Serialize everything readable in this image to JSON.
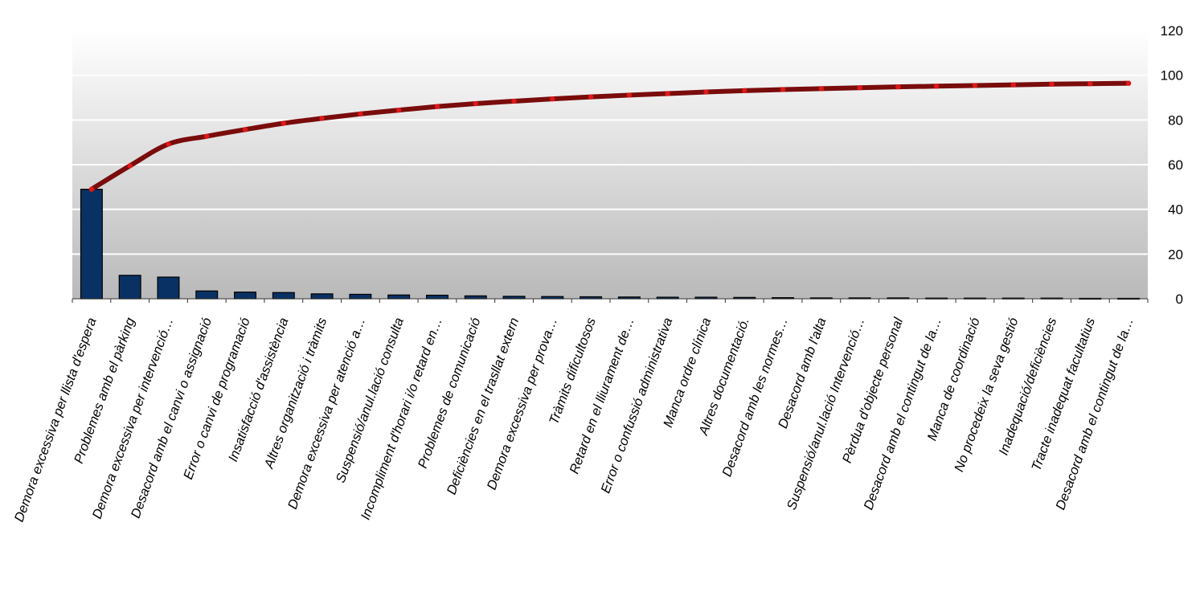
{
  "chart_data": {
    "type": "bar",
    "combo_line": true,
    "categories": [
      "Demora excessiva per llista d'espera",
      "Problemes amb el pàrking",
      "Demora excessiva per intervenció…",
      "Desacord amb el canvi o assignació",
      "Error o canvi de programació",
      "Insatisfacció d'assistència",
      "Altres organització i tràmits",
      "Demora excessiva per atenció a…",
      "Suspensió/anul.lació consulta",
      "Incompliment d'horari i/o retard en…",
      "Problemes de comunicació",
      "Deficiències en el trasllat extern",
      "Demora excessiva per prova…",
      "Tràmits dificultosos",
      "Retard en el lliurament de…",
      "Error o confussió administrativa",
      "Manca ordre clínica",
      "Altres documentació.",
      "Desacord amb les normes…",
      "Desacord amb l'alta",
      "Suspensió/anul.lació Intervenció…",
      "Pèrdua d'objecte personal",
      "Desacord amb el contingut de la…",
      "Manca de coordinació",
      "No procedeix la seva gestió",
      "Inadequació/deficiències",
      "Tracte inadequat facultatius",
      "Desacord amb el contingut de la…"
    ],
    "series": [
      {
        "type": "bar",
        "values": [
          49,
          10.5,
          9.7,
          3.5,
          3.0,
          2.8,
          2.2,
          2.0,
          1.7,
          1.6,
          1.3,
          1.1,
          1.0,
          0.9,
          0.8,
          0.7,
          0.7,
          0.6,
          0.5,
          0.4,
          0.4,
          0.4,
          0.3,
          0.3,
          0.3,
          0.3,
          0.2,
          0.2
        ],
        "color": "#0a3163"
      },
      {
        "type": "line",
        "values": [
          49,
          59.5,
          69.2,
          72.7,
          75.7,
          78.5,
          80.7,
          82.7,
          84.4,
          86.0,
          87.3,
          88.4,
          89.4,
          90.3,
          91.1,
          91.8,
          92.5,
          93.1,
          93.6,
          94.0,
          94.4,
          94.8,
          95.1,
          95.4,
          95.7,
          96.0,
          96.2,
          96.4
        ],
        "color": "#7a0c0c",
        "marker_color": "#e01818"
      }
    ],
    "y_axis": {
      "position": "right",
      "ylim": [
        0,
        120
      ],
      "ticks": [
        "0",
        "20",
        "40",
        "60",
        "80",
        "100",
        "120"
      ]
    },
    "grid": true,
    "plot_background": "gradient-white-to-gray"
  }
}
